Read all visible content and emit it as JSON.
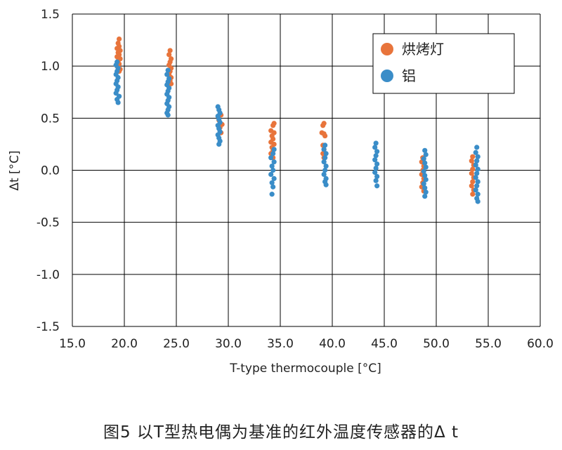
{
  "caption": "图5  以T型热电偶为基准的红外温度传感器的Δ  t",
  "chart_data": {
    "type": "scatter",
    "xlabel": "T-type thermocouple [°C]",
    "ylabel": "Δt [°C]",
    "xlim": [
      15.0,
      60.0
    ],
    "ylim": [
      -1.5,
      1.5
    ],
    "x_ticks": [
      "15.0",
      "20.0",
      "25.0",
      "30.0",
      "35.0",
      "40.0",
      "45.0",
      "50.0",
      "55.0",
      "60.0"
    ],
    "y_ticks": [
      "1.5",
      "1.0",
      "0.5",
      "0.0",
      "-0.5",
      "-1.0",
      "-1.5"
    ],
    "grid": true,
    "legend_position": "top-right",
    "colors": {
      "series1": "#E8743B",
      "series2": "#3A8DC8",
      "grid": "#000000"
    },
    "series": [
      {
        "name": "烘烤灯",
        "points": [
          {
            "x": 19.5,
            "y": 1.26
          },
          {
            "x": 19.4,
            "y": 1.22
          },
          {
            "x": 19.5,
            "y": 1.19
          },
          {
            "x": 19.3,
            "y": 1.17
          },
          {
            "x": 19.6,
            "y": 1.15
          },
          {
            "x": 19.4,
            "y": 1.13
          },
          {
            "x": 19.5,
            "y": 1.11
          },
          {
            "x": 19.3,
            "y": 1.09
          },
          {
            "x": 19.6,
            "y": 1.07
          },
          {
            "x": 19.4,
            "y": 1.05
          },
          {
            "x": 19.5,
            "y": 1.02
          },
          {
            "x": 19.3,
            "y": 1.0
          },
          {
            "x": 19.6,
            "y": 0.97
          },
          {
            "x": 19.5,
            "y": 0.95
          },
          {
            "x": 24.4,
            "y": 1.15
          },
          {
            "x": 24.3,
            "y": 1.11
          },
          {
            "x": 24.5,
            "y": 1.07
          },
          {
            "x": 24.4,
            "y": 1.04
          },
          {
            "x": 24.3,
            "y": 1.01
          },
          {
            "x": 24.5,
            "y": 0.98
          },
          {
            "x": 24.4,
            "y": 0.95
          },
          {
            "x": 24.3,
            "y": 0.92
          },
          {
            "x": 24.5,
            "y": 0.89
          },
          {
            "x": 24.4,
            "y": 0.86
          },
          {
            "x": 24.5,
            "y": 0.83
          },
          {
            "x": 29.3,
            "y": 0.53
          },
          {
            "x": 29.1,
            "y": 0.48
          },
          {
            "x": 29.4,
            "y": 0.44
          },
          {
            "x": 29.2,
            "y": 0.41
          },
          {
            "x": 29.3,
            "y": 0.36
          },
          {
            "x": 34.4,
            "y": 0.45
          },
          {
            "x": 34.3,
            "y": 0.43
          },
          {
            "x": 34.1,
            "y": 0.38
          },
          {
            "x": 34.4,
            "y": 0.36
          },
          {
            "x": 34.2,
            "y": 0.33
          },
          {
            "x": 34.3,
            "y": 0.3
          },
          {
            "x": 34.1,
            "y": 0.27
          },
          {
            "x": 34.4,
            "y": 0.25
          },
          {
            "x": 34.2,
            "y": 0.22
          },
          {
            "x": 34.3,
            "y": 0.19
          },
          {
            "x": 34.1,
            "y": 0.16
          },
          {
            "x": 34.3,
            "y": 0.12
          },
          {
            "x": 39.2,
            "y": 0.45
          },
          {
            "x": 39.1,
            "y": 0.43
          },
          {
            "x": 39.0,
            "y": 0.36
          },
          {
            "x": 39.2,
            "y": 0.35
          },
          {
            "x": 39.3,
            "y": 0.33
          },
          {
            "x": 39.1,
            "y": 0.24
          },
          {
            "x": 39.2,
            "y": 0.2
          },
          {
            "x": 39.1,
            "y": 0.16
          },
          {
            "x": 39.2,
            "y": 0.12
          },
          {
            "x": 48.7,
            "y": 0.12
          },
          {
            "x": 48.6,
            "y": 0.08
          },
          {
            "x": 48.8,
            "y": 0.04
          },
          {
            "x": 48.7,
            "y": 0.0
          },
          {
            "x": 48.6,
            "y": -0.04
          },
          {
            "x": 48.8,
            "y": -0.08
          },
          {
            "x": 48.7,
            "y": -0.12
          },
          {
            "x": 48.6,
            "y": -0.16
          },
          {
            "x": 48.8,
            "y": -0.2
          },
          {
            "x": 53.5,
            "y": 0.13
          },
          {
            "x": 53.4,
            "y": 0.09
          },
          {
            "x": 53.6,
            "y": 0.05
          },
          {
            "x": 53.5,
            "y": 0.01
          },
          {
            "x": 53.4,
            "y": -0.03
          },
          {
            "x": 53.6,
            "y": -0.07
          },
          {
            "x": 53.5,
            "y": -0.11
          },
          {
            "x": 53.4,
            "y": -0.15
          },
          {
            "x": 53.6,
            "y": -0.19
          },
          {
            "x": 53.5,
            "y": -0.23
          }
        ]
      },
      {
        "name": "铝",
        "points": [
          {
            "x": 19.3,
            "y": 1.04
          },
          {
            "x": 19.2,
            "y": 1.01
          },
          {
            "x": 19.4,
            "y": 0.98
          },
          {
            "x": 19.3,
            "y": 0.95
          },
          {
            "x": 19.2,
            "y": 0.92
          },
          {
            "x": 19.4,
            "y": 0.89
          },
          {
            "x": 19.3,
            "y": 0.86
          },
          {
            "x": 19.2,
            "y": 0.83
          },
          {
            "x": 19.4,
            "y": 0.8
          },
          {
            "x": 19.3,
            "y": 0.77
          },
          {
            "x": 19.2,
            "y": 0.74
          },
          {
            "x": 19.5,
            "y": 0.71
          },
          {
            "x": 19.3,
            "y": 0.68
          },
          {
            "x": 19.4,
            "y": 0.65
          },
          {
            "x": 24.2,
            "y": 0.96
          },
          {
            "x": 24.1,
            "y": 0.92
          },
          {
            "x": 24.3,
            "y": 0.88
          },
          {
            "x": 24.2,
            "y": 0.85
          },
          {
            "x": 24.1,
            "y": 0.82
          },
          {
            "x": 24.3,
            "y": 0.79
          },
          {
            "x": 24.2,
            "y": 0.76
          },
          {
            "x": 24.1,
            "y": 0.73
          },
          {
            "x": 24.3,
            "y": 0.7
          },
          {
            "x": 24.2,
            "y": 0.67
          },
          {
            "x": 24.1,
            "y": 0.64
          },
          {
            "x": 24.3,
            "y": 0.61
          },
          {
            "x": 24.2,
            "y": 0.58
          },
          {
            "x": 24.1,
            "y": 0.55
          },
          {
            "x": 24.2,
            "y": 0.53
          },
          {
            "x": 29.0,
            "y": 0.61
          },
          {
            "x": 29.1,
            "y": 0.58
          },
          {
            "x": 29.2,
            "y": 0.55
          },
          {
            "x": 29.0,
            "y": 0.52
          },
          {
            "x": 29.1,
            "y": 0.49
          },
          {
            "x": 29.2,
            "y": 0.46
          },
          {
            "x": 29.0,
            "y": 0.43
          },
          {
            "x": 29.1,
            "y": 0.4
          },
          {
            "x": 29.2,
            "y": 0.37
          },
          {
            "x": 29.0,
            "y": 0.34
          },
          {
            "x": 29.1,
            "y": 0.31
          },
          {
            "x": 29.2,
            "y": 0.28
          },
          {
            "x": 29.1,
            "y": 0.25
          },
          {
            "x": 34.4,
            "y": 0.2
          },
          {
            "x": 34.3,
            "y": 0.16
          },
          {
            "x": 34.1,
            "y": 0.12
          },
          {
            "x": 34.4,
            "y": 0.08
          },
          {
            "x": 34.2,
            "y": 0.04
          },
          {
            "x": 34.3,
            "y": 0.0
          },
          {
            "x": 34.1,
            "y": -0.04
          },
          {
            "x": 34.4,
            "y": -0.08
          },
          {
            "x": 34.2,
            "y": -0.12
          },
          {
            "x": 34.3,
            "y": -0.16
          },
          {
            "x": 34.2,
            "y": -0.23
          },
          {
            "x": 39.3,
            "y": 0.24
          },
          {
            "x": 39.2,
            "y": 0.2
          },
          {
            "x": 39.4,
            "y": 0.16
          },
          {
            "x": 39.3,
            "y": 0.12
          },
          {
            "x": 39.2,
            "y": 0.08
          },
          {
            "x": 39.4,
            "y": 0.04
          },
          {
            "x": 39.3,
            "y": 0.0
          },
          {
            "x": 39.2,
            "y": -0.04
          },
          {
            "x": 39.4,
            "y": -0.08
          },
          {
            "x": 39.3,
            "y": -0.11
          },
          {
            "x": 39.4,
            "y": -0.14
          },
          {
            "x": 44.2,
            "y": 0.26
          },
          {
            "x": 44.1,
            "y": 0.22
          },
          {
            "x": 44.3,
            "y": 0.18
          },
          {
            "x": 44.2,
            "y": 0.14
          },
          {
            "x": 44.1,
            "y": 0.1
          },
          {
            "x": 44.3,
            "y": 0.06
          },
          {
            "x": 44.2,
            "y": 0.02
          },
          {
            "x": 44.1,
            "y": -0.02
          },
          {
            "x": 44.3,
            "y": -0.06
          },
          {
            "x": 44.2,
            "y": -0.1
          },
          {
            "x": 44.3,
            "y": -0.15
          },
          {
            "x": 48.9,
            "y": 0.19
          },
          {
            "x": 49.0,
            "y": 0.15
          },
          {
            "x": 48.8,
            "y": 0.11
          },
          {
            "x": 48.9,
            "y": 0.07
          },
          {
            "x": 49.0,
            "y": 0.03
          },
          {
            "x": 48.8,
            "y": -0.01
          },
          {
            "x": 48.9,
            "y": -0.05
          },
          {
            "x": 49.0,
            "y": -0.09
          },
          {
            "x": 48.8,
            "y": -0.13
          },
          {
            "x": 48.9,
            "y": -0.17
          },
          {
            "x": 49.0,
            "y": -0.21
          },
          {
            "x": 48.9,
            "y": -0.25
          },
          {
            "x": 53.9,
            "y": 0.22
          },
          {
            "x": 53.8,
            "y": 0.17
          },
          {
            "x": 54.0,
            "y": 0.13
          },
          {
            "x": 53.9,
            "y": 0.09
          },
          {
            "x": 53.8,
            "y": 0.05
          },
          {
            "x": 54.0,
            "y": 0.01
          },
          {
            "x": 53.9,
            "y": -0.03
          },
          {
            "x": 53.8,
            "y": -0.07
          },
          {
            "x": 54.0,
            "y": -0.11
          },
          {
            "x": 53.9,
            "y": -0.15
          },
          {
            "x": 53.8,
            "y": -0.19
          },
          {
            "x": 54.0,
            "y": -0.23
          },
          {
            "x": 53.9,
            "y": -0.27
          },
          {
            "x": 54.0,
            "y": -0.3
          }
        ]
      }
    ]
  }
}
